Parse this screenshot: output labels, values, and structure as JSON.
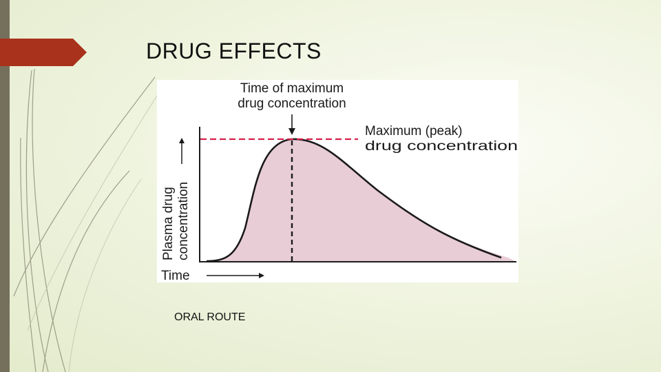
{
  "slide": {
    "title": "DRUG EFFECTS",
    "caption": "ORAL ROUTE",
    "colors": {
      "accent": "#a8321b",
      "sidebar": "#74705c",
      "fill": "#e8cdd6",
      "peak_line": "#d81f4a"
    }
  },
  "diagram": {
    "top_label_line1": "Time of maximum",
    "top_label_line2": "drug concentration",
    "peak_label_line1": "Maximum (peak)",
    "peak_label_line2": "drug concentration",
    "y_label_line1": "Plasma drug",
    "y_label_line2": "concentration",
    "x_label": "Time"
  }
}
